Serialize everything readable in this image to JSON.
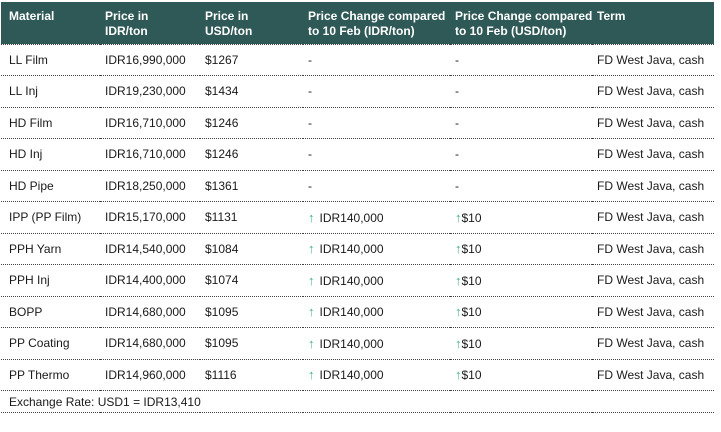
{
  "colors": {
    "header_bg": "#2f5956",
    "header_text": "#ffffff",
    "arrow_green": "#3db37e",
    "text": "#1a1a1a",
    "divider": "#3f3f3f"
  },
  "icons": {
    "up_arrow": "↑"
  },
  "table": {
    "columns": [
      {
        "id": "material",
        "label": "Material"
      },
      {
        "id": "price_idr",
        "label": "Price in\nIDR/ton"
      },
      {
        "id": "price_usd",
        "label": "Price in\nUSD/ton"
      },
      {
        "id": "change_idr",
        "label": "Price Change compared\nto 10 Feb (IDR/ton)"
      },
      {
        "id": "change_usd",
        "label": "Price Change compared\nto 10 Feb (USD/ton)"
      },
      {
        "id": "term",
        "label": "Term"
      }
    ],
    "rows": [
      {
        "material": "LL Film",
        "price_idr": "IDR16,990,000",
        "price_usd": "$1267",
        "change_idr": "-",
        "change_idr_up": false,
        "change_usd": "-",
        "change_usd_up": false,
        "term": "FD West Java, cash"
      },
      {
        "material": "LL Inj",
        "price_idr": "IDR19,230,000",
        "price_usd": "$1434",
        "change_idr": "-",
        "change_idr_up": false,
        "change_usd": "-",
        "change_usd_up": false,
        "term": "FD West Java, cash"
      },
      {
        "material": "HD Film",
        "price_idr": "IDR16,710,000",
        "price_usd": "$1246",
        "change_idr": "-",
        "change_idr_up": false,
        "change_usd": "-",
        "change_usd_up": false,
        "term": "FD West Java, cash"
      },
      {
        "material": "HD Inj",
        "price_idr": "IDR16,710,000",
        "price_usd": "$1246",
        "change_idr": "-",
        "change_idr_up": false,
        "change_usd": "-",
        "change_usd_up": false,
        "term": "FD West Java, cash"
      },
      {
        "material": "HD Pipe",
        "price_idr": "IDR18,250,000",
        "price_usd": "$1361",
        "change_idr": "-",
        "change_idr_up": false,
        "change_usd": "-",
        "change_usd_up": false,
        "term": "FD West Java, cash"
      },
      {
        "material": "IPP (PP Film)",
        "price_idr": "IDR15,170,000",
        "price_usd": "$1131",
        "change_idr": "IDR140,000",
        "change_idr_up": true,
        "change_usd": "$10",
        "change_usd_up": true,
        "term": "FD West Java, cash"
      },
      {
        "material": "PPH Yarn",
        "price_idr": "IDR14,540,000",
        "price_usd": "$1084",
        "change_idr": "IDR140,000",
        "change_idr_up": true,
        "change_usd": "$10",
        "change_usd_up": true,
        "term": "FD West Java, cash"
      },
      {
        "material": "PPH Inj",
        "price_idr": "IDR14,400,000",
        "price_usd": "$1074",
        "change_idr": "IDR140,000",
        "change_idr_up": true,
        "change_usd": "$10",
        "change_usd_up": true,
        "term": "FD West Java, cash"
      },
      {
        "material": "BOPP",
        "price_idr": "IDR14,680,000",
        "price_usd": "$1095",
        "change_idr": "IDR140,000",
        "change_idr_up": true,
        "change_usd": "$10",
        "change_usd_up": true,
        "term": "FD West Java, cash"
      },
      {
        "material": "PP Coating",
        "price_idr": "IDR14,680,000",
        "price_usd": "$1095",
        "change_idr": "IDR140,000",
        "change_idr_up": true,
        "change_usd": "$10",
        "change_usd_up": true,
        "term": "FD West Java, cash"
      },
      {
        "material": "PP Thermo",
        "price_idr": "IDR14,960,000",
        "price_usd": "$1116",
        "change_idr": "IDR140,000",
        "change_idr_up": true,
        "change_usd": "$10",
        "change_usd_up": true,
        "term": "FD West Java, cash"
      }
    ],
    "footer": "Exchange Rate: USD1 = IDR13,410"
  }
}
